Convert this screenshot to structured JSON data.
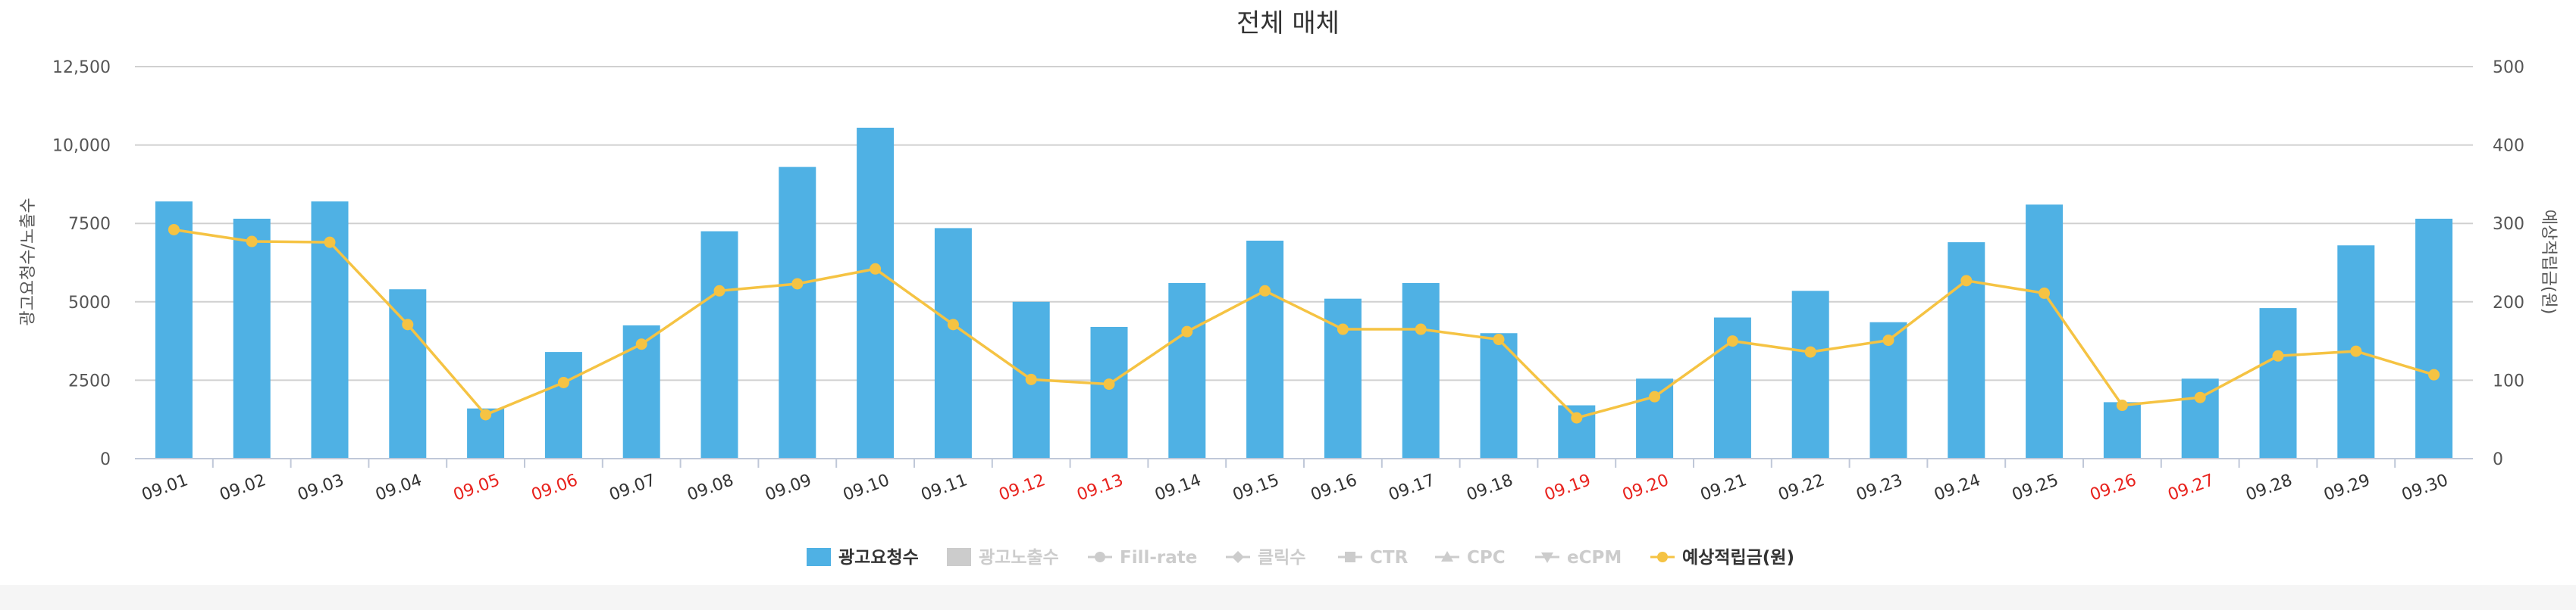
{
  "chart_data": {
    "type": "bar",
    "title": "전체 매체",
    "categories": [
      "09.01",
      "09.02",
      "09.03",
      "09.04",
      "09.05",
      "09.06",
      "09.07",
      "09.08",
      "09.09",
      "09.10",
      "09.11",
      "09.12",
      "09.13",
      "09.14",
      "09.15",
      "09.16",
      "09.17",
      "09.18",
      "09.19",
      "09.20",
      "09.21",
      "09.22",
      "09.23",
      "09.24",
      "09.25",
      "09.26",
      "09.27",
      "09.28",
      "09.29",
      "09.30"
    ],
    "highlight_categories": [
      "09.05",
      "09.06",
      "09.12",
      "09.13",
      "09.19",
      "09.20",
      "09.26",
      "09.27"
    ],
    "highlight_color": "#e8231e",
    "ylabel_left": "광고요청수/노출수",
    "ylabel_right": "예상적립금(원)",
    "ylim_left": [
      0,
      12500
    ],
    "yticks_left": [
      "0",
      "2500",
      "5000",
      "7500",
      "10,000",
      "12,500"
    ],
    "ylim_right": [
      0,
      500
    ],
    "yticks_right": [
      "0",
      "100",
      "200",
      "300",
      "400",
      "500"
    ],
    "grid": true,
    "series": [
      {
        "name": "광고요청수",
        "type": "bar",
        "axis": "left",
        "color": "#4fb1e4",
        "values": [
          8200,
          7650,
          8200,
          5400,
          1600,
          3400,
          4250,
          7250,
          9300,
          10550,
          7350,
          5000,
          4200,
          5600,
          6950,
          5100,
          5600,
          4000,
          1700,
          2550,
          4500,
          5350,
          4350,
          6900,
          8100,
          1800,
          2550,
          4800,
          6800,
          7650
        ]
      },
      {
        "name": "예상적립금(원)",
        "type": "line",
        "axis": "right",
        "color": "#f5c343",
        "values": [
          292,
          277,
          276,
          171,
          56,
          97,
          146,
          214,
          223,
          242,
          171,
          101,
          95,
          162,
          214,
          165,
          165,
          152,
          52,
          79,
          150,
          136,
          151,
          227,
          211,
          68,
          78,
          131,
          137,
          107
        ]
      }
    ],
    "legend": [
      {
        "label": "광고요청수",
        "marker": "square",
        "active": true
      },
      {
        "label": "광고노출수",
        "marker": "square",
        "active": false
      },
      {
        "label": "Fill-rate",
        "marker": "line-circle",
        "active": false
      },
      {
        "label": "클릭수",
        "marker": "line-diamond",
        "active": false
      },
      {
        "label": "CTR",
        "marker": "line-square",
        "active": false
      },
      {
        "label": "CPC",
        "marker": "line-triangle",
        "active": false
      },
      {
        "label": "eCPM",
        "marker": "line-triangle-down",
        "active": false
      },
      {
        "label": "예상적립금(원)",
        "marker": "line-circle",
        "active": true
      }
    ],
    "legend_position": "bottom-center",
    "legend_active_color": "#333333",
    "legend_inactive_color": "#cccccc"
  }
}
